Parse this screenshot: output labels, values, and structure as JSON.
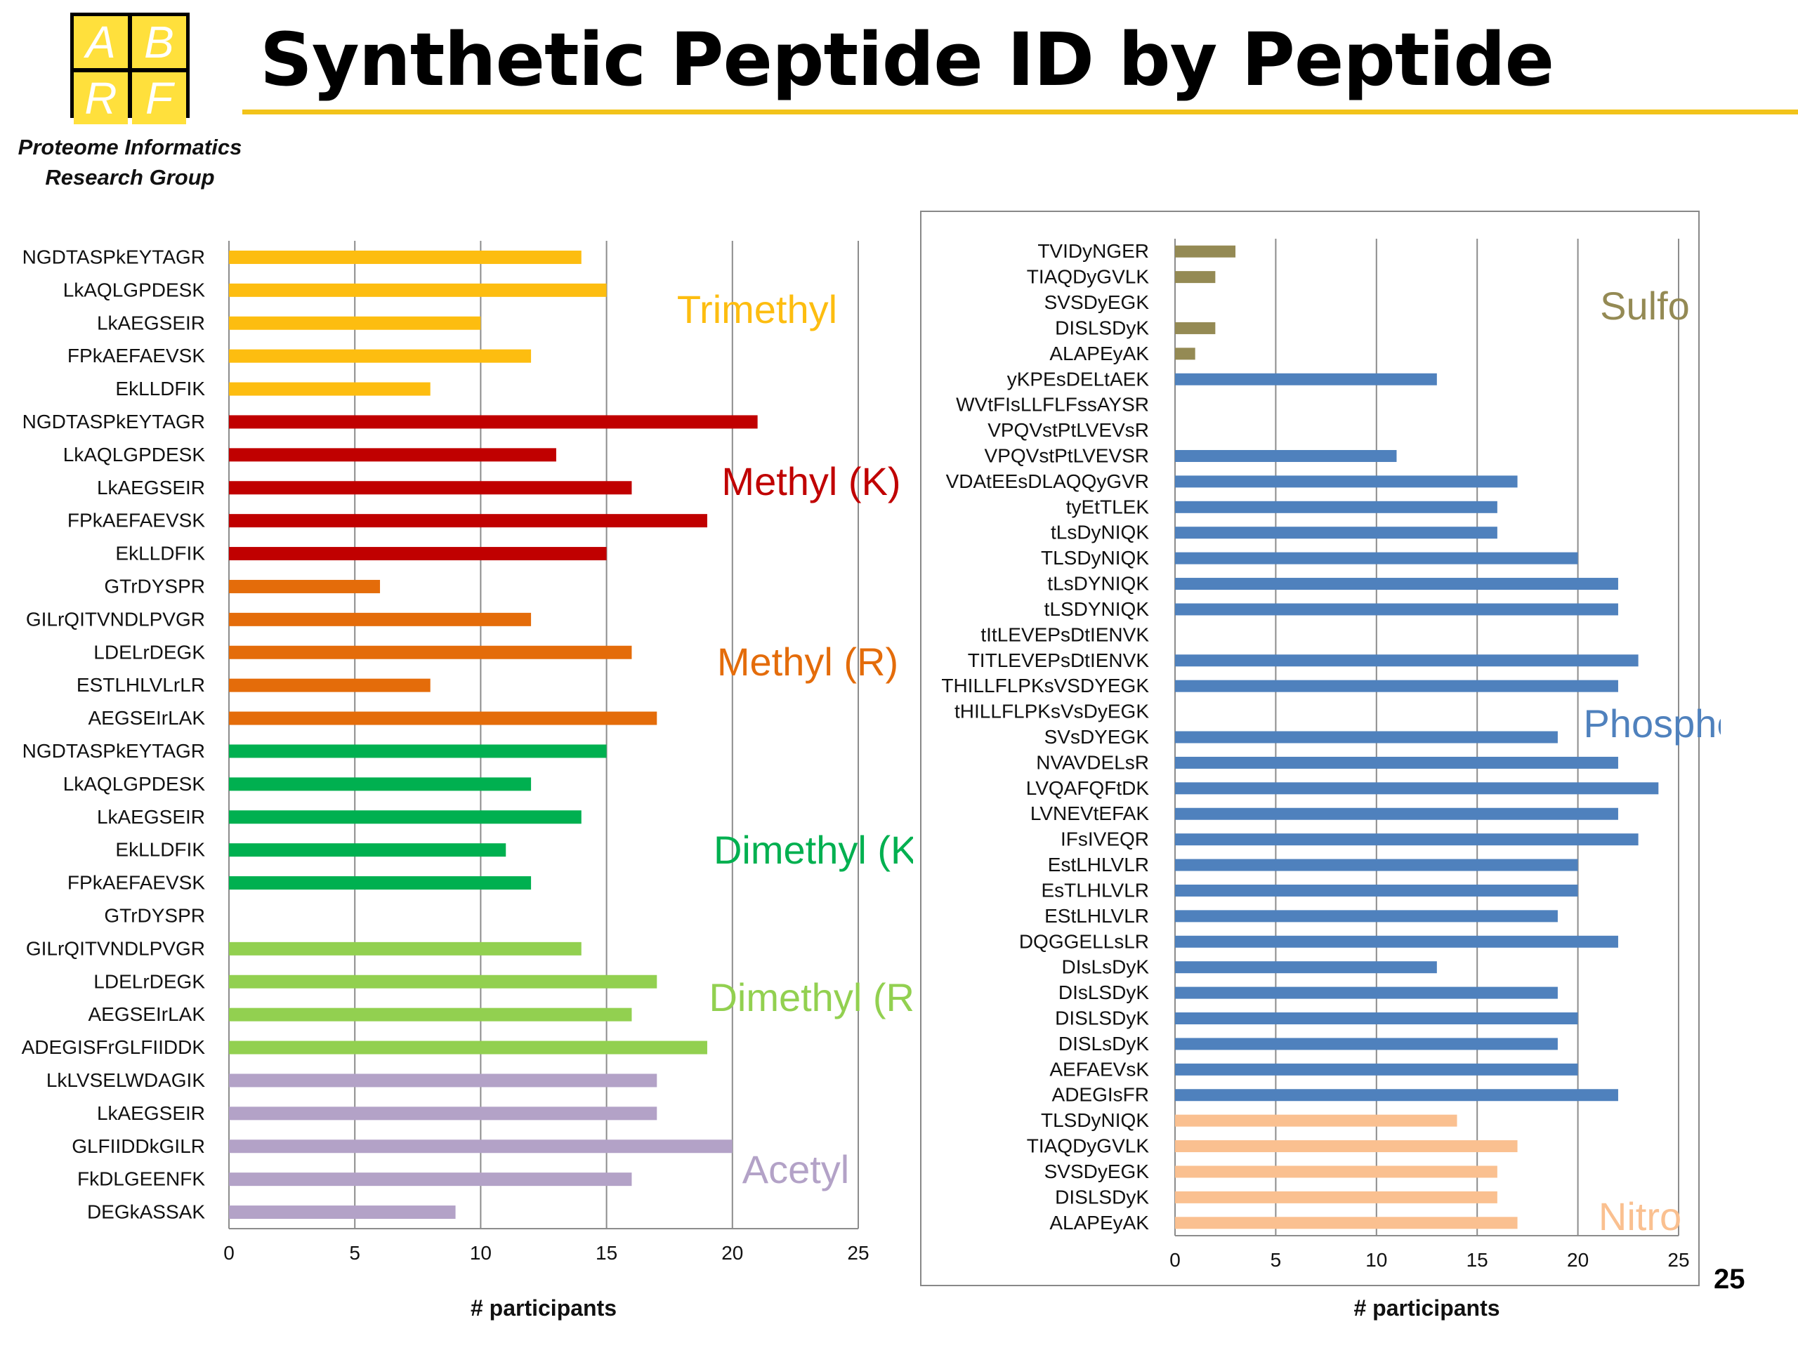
{
  "header": {
    "logo_letters": [
      "A",
      "B",
      "R",
      "F"
    ],
    "org_line1": "Proteome Informatics",
    "org_line2": "Research Group",
    "title": "Synthetic Peptide ID by Peptide",
    "page_number": "25"
  },
  "colors": {
    "accent_rule": "#f2c31a",
    "Trimethyl": "#fdbd10",
    "Methyl (K)": "#c00000",
    "Methyl (R)": "#e46c0a",
    "Dimethyl (K)": "#00b050",
    "Dimethyl (R)": "#92d050",
    "Acetyl": "#b3a2c7",
    "Sulfo": "#948a54",
    "Phospho": "#4f81bd",
    "Nitro": "#fac090"
  },
  "chart_data": [
    {
      "type": "bar",
      "orientation": "horizontal",
      "xlabel": "# participants",
      "xlim": [
        0,
        25
      ],
      "xticks": [
        0,
        5,
        10,
        15,
        20,
        25
      ],
      "grid": true,
      "groups": [
        {
          "name": "Trimethyl",
          "categories": [
            "NGDTASPkEYTAGR",
            "LkAQLGPDESK",
            "LkAEGSEIR",
            "FPkAEFAEVSK",
            "EkLLDFIK"
          ],
          "values": [
            14,
            15,
            10,
            12,
            8
          ]
        },
        {
          "name": "Methyl (K)",
          "categories": [
            "NGDTASPkEYTAGR",
            "LkAQLGPDESK",
            "LkAEGSEIR",
            "FPkAEFAEVSK",
            "EkLLDFIK"
          ],
          "values": [
            21,
            13,
            16,
            19,
            15
          ]
        },
        {
          "name": "Methyl (R)",
          "categories": [
            "GTrDYSPR",
            "GILrQITVNDLPVGR",
            "LDELrDEGK",
            "ESTLHLVLrLR",
            "AEGSEIrLAK"
          ],
          "values": [
            6,
            12,
            16,
            8,
            17
          ]
        },
        {
          "name": "Dimethyl (K)",
          "categories": [
            "NGDTASPkEYTAGR",
            "LkAQLGPDESK",
            "LkAEGSEIR",
            "EkLLDFIK",
            "FPkAEFAEVSK"
          ],
          "values": [
            15,
            12,
            14,
            11,
            12
          ]
        },
        {
          "name": "Dimethyl (R)",
          "categories": [
            "GTrDYSPR",
            "GILrQITVNDLPVGR",
            "LDELrDEGK",
            "AEGSEIrLAK",
            "ADEGISFrGLFIIDDK"
          ],
          "values": [
            0,
            14,
            17,
            16,
            19
          ]
        },
        {
          "name": "Acetyl",
          "categories": [
            "LkLVSELWDAGIK",
            "LkAEGSEIR",
            "GLFIIDDkGILR",
            "FkDLGEENFK",
            "DEGkASSAK"
          ],
          "values": [
            17,
            17,
            20,
            16,
            9
          ]
        }
      ]
    },
    {
      "type": "bar",
      "orientation": "horizontal",
      "xlabel": "# participants",
      "xlim": [
        0,
        25
      ],
      "xticks": [
        0,
        5,
        10,
        15,
        20,
        25
      ],
      "grid": true,
      "groups": [
        {
          "name": "Sulfo",
          "categories": [
            "TVIDyNGER",
            "TIAQDyGVLK",
            "SVSDyEGK",
            "DISLSDyK",
            "ALAPEyAK"
          ],
          "values": [
            3,
            2,
            0,
            2,
            1
          ]
        },
        {
          "name": "Phospho",
          "categories": [
            "yKPEsDELtAEK",
            "WVtFIsLLFLFssAYSR",
            "VPQVstPtLVEVsR",
            "VPQVstPtLVEVSR",
            "VDAtEEsDLAQQyGVR",
            "tyEtTLEK",
            "tLsDyNIQK",
            "TLSDyNIQK",
            "tLsDYNIQK",
            "tLSDYNIQK",
            "tItLEVEPsDtIENVK",
            "TITLEVEPsDtIENVK",
            "THILLFLPKsVSDYEGK",
            "tHILLFLPKsVsDyEGK",
            "SVsDYEGK",
            "NVAVDELsR",
            "LVQAFQFtDK",
            "LVNEVtEFAK",
            "IFsIVEQR",
            "EstLHLVLR",
            "EsTLHLVLR",
            "EStLHLVLR",
            "DQGGELLsLR",
            "DIsLsDyK",
            "DIsLSDyK",
            "DISLSDyK",
            "DISLsDyK",
            "AEFAEVsK",
            "ADEGIsFR"
          ],
          "values": [
            13,
            0,
            0,
            11,
            17,
            16,
            16,
            20,
            22,
            22,
            0,
            23,
            22,
            0,
            19,
            22,
            24,
            22,
            23,
            20,
            20,
            19,
            22,
            13,
            19,
            20,
            19,
            20,
            22
          ]
        },
        {
          "name": "Nitro",
          "categories": [
            "TLSDyNIQK",
            "TIAQDyGVLK",
            "SVSDyEGK",
            "DISLSDyK",
            "ALAPEyAK"
          ],
          "values": [
            14,
            17,
            16,
            16,
            17
          ]
        }
      ]
    }
  ]
}
